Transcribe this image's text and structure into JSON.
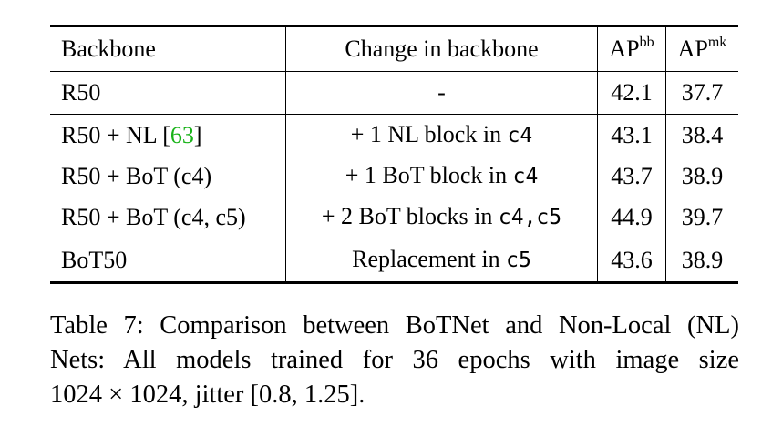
{
  "table": {
    "headers": {
      "backbone": "Backbone",
      "change": "Change in backbone",
      "ap_bb_base": "AP",
      "ap_bb_sup": "bb",
      "ap_mk_base": "AP",
      "ap_mk_sup": "mk"
    },
    "rows": [
      {
        "backbone": "R50",
        "change": "-",
        "ap_bb": "42.1",
        "ap_mk": "37.7"
      },
      {
        "backbone_pre": "R50 + NL [",
        "backbone_cite": "63",
        "backbone_post": "]",
        "change_text": "+ 1 NL block in ",
        "change_code": "c4",
        "ap_bb": "43.1",
        "ap_mk": "38.4"
      },
      {
        "backbone": "R50 + BoT (c4)",
        "change_text": "+ 1 BoT block in ",
        "change_code": "c4",
        "ap_bb": "43.7",
        "ap_mk": "38.9"
      },
      {
        "backbone": "R50 + BoT (c4, c5)",
        "change_text": "+ 2 BoT blocks in ",
        "change_code": "c4,c5",
        "ap_bb": "44.9",
        "ap_mk": "39.7"
      },
      {
        "backbone": "BoT50",
        "change_text": "Replacement in ",
        "change_code": "c5",
        "ap_bb": "43.6",
        "ap_mk": "38.9"
      }
    ]
  },
  "caption": {
    "line1": "Table 7: Comparison between BoTNet and Non-Local (NL)",
    "line2": "Nets: All models trained for 36 epochs with image size",
    "line3": "1024 × 1024, jitter [0.8, 1.25]."
  },
  "colors": {
    "citation": "#19b319",
    "text": "#000000",
    "background": "#ffffff"
  }
}
